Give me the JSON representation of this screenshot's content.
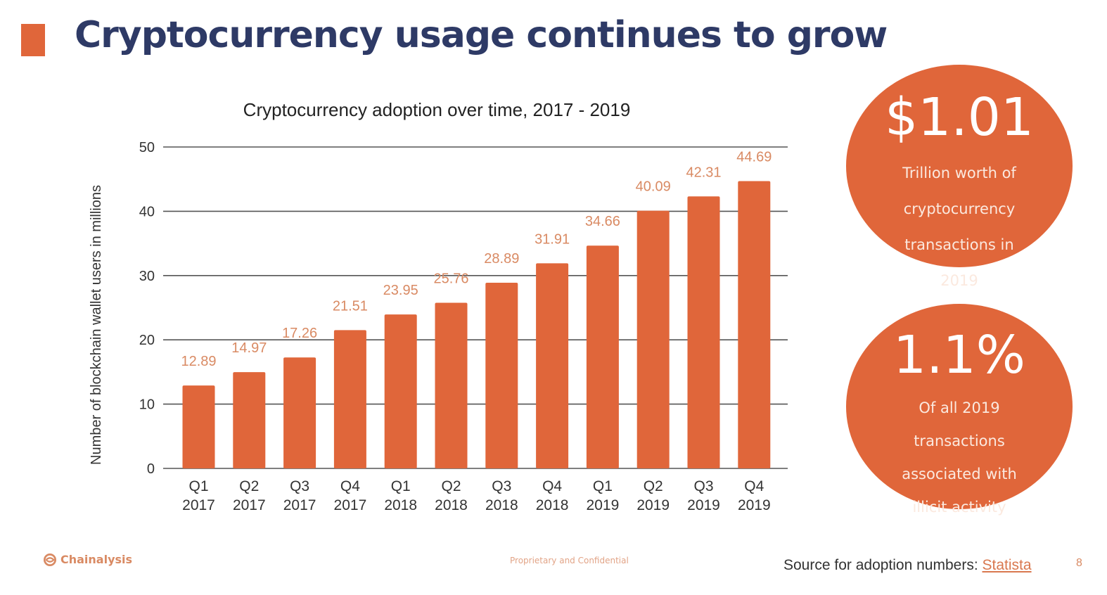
{
  "slide": {
    "title": "Cryptocurrency usage continues to grow",
    "accent_color": "#E0663A",
    "title_color": "#2E3A66"
  },
  "chart_data": {
    "type": "bar",
    "title": "Cryptocurrency adoption over time, 2017 - 2019",
    "xlabel": "",
    "ylabel": "Number of blockchain wallet users in millions",
    "ylim": [
      0,
      50
    ],
    "yticks": [
      0,
      10,
      20,
      30,
      40,
      50
    ],
    "grid": true,
    "bar_color": "#E0663A",
    "categories": [
      [
        "Q1",
        "2017"
      ],
      [
        "Q2",
        "2017"
      ],
      [
        "Q3",
        "2017"
      ],
      [
        "Q4",
        "2017"
      ],
      [
        "Q1",
        "2018"
      ],
      [
        "Q2",
        "2018"
      ],
      [
        "Q3",
        "2018"
      ],
      [
        "Q4",
        "2018"
      ],
      [
        "Q1",
        "2019"
      ],
      [
        "Q2",
        "2019"
      ],
      [
        "Q3",
        "2019"
      ],
      [
        "Q4",
        "2019"
      ]
    ],
    "values": [
      12.89,
      14.97,
      17.26,
      21.51,
      23.95,
      25.76,
      28.89,
      31.91,
      34.66,
      40.09,
      42.31,
      44.69
    ],
    "data_labels": [
      "12.89",
      "14.97",
      "17.26",
      "21.51",
      "23.95",
      "25.76",
      "28.89",
      "31.91",
      "34.66",
      "40.09",
      "42.31",
      "44.69"
    ]
  },
  "stats": [
    {
      "value": "$1.01",
      "description": [
        "Trillion worth of",
        "cryptocurrency",
        "transactions in",
        "2019"
      ]
    },
    {
      "value": "1.1%",
      "description": [
        "Of all 2019",
        "transactions",
        "associated with",
        "illicit activity"
      ]
    }
  ],
  "footer": {
    "logo_text": "Chainalysis",
    "confidential": "Proprietary and Confidential",
    "source_prefix": "Source for adoption numbers: ",
    "source_link": "Statista",
    "page_number": "8"
  }
}
